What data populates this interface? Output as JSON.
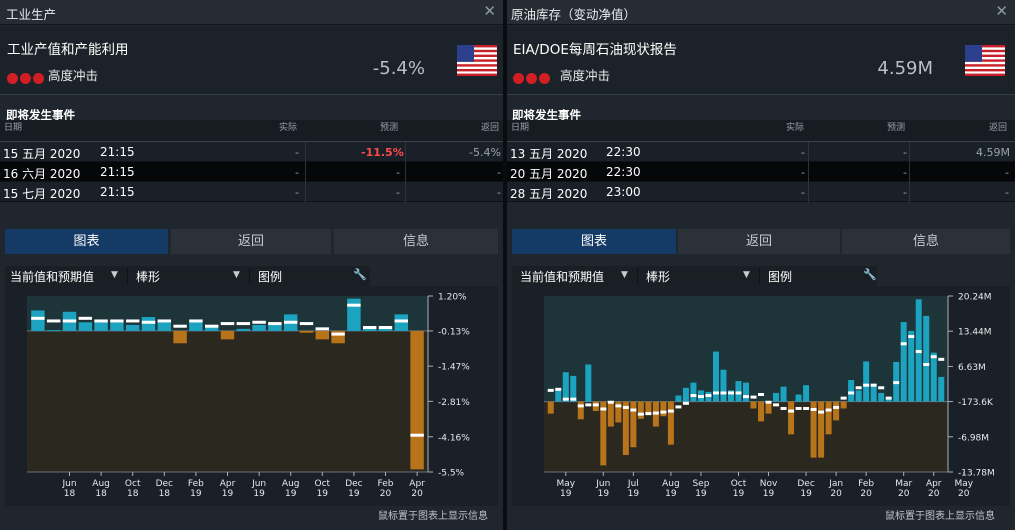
{
  "left": {
    "title": "工业生产",
    "event_name": "工业产值和产能利用",
    "impact_label": "高度冲击",
    "big_value": "-5.4%",
    "upcoming_title": "即将发生事件",
    "columns": {
      "date": "日期",
      "actual": "实际",
      "forecast": "预测",
      "previous": "返回"
    },
    "rows": [
      {
        "date": "15 五月 2020",
        "time": "21:15",
        "actual": "-",
        "forecast": "-11.5%",
        "previous": "-5.4%"
      },
      {
        "date": "16 六月 2020",
        "time": "21:15",
        "actual": "-",
        "forecast": "-",
        "previous": "-"
      },
      {
        "date": "15 七月 2020",
        "time": "21:15",
        "actual": "-",
        "forecast": "-",
        "previous": "-"
      }
    ],
    "tabs": [
      "图表",
      "返回",
      "信息"
    ],
    "controls": {
      "series": "当前值和预期值",
      "type": "棒形",
      "legend": "图例"
    },
    "footer": "鼠标置于图表上显示信息"
  },
  "right": {
    "title": "原油库存（变动净值）",
    "event_name": "EIA/DOE每周石油现状报告",
    "impact_label": "高度冲击",
    "big_value": "4.59M",
    "upcoming_title": "即将发生事件",
    "columns": {
      "date": "日期",
      "actual": "实际",
      "forecast": "预测",
      "previous": "返回"
    },
    "rows": [
      {
        "date": "13 五月 2020",
        "time": "22:30",
        "actual": "-",
        "forecast": "-",
        "previous": "4.59M"
      },
      {
        "date": "20 五月 2020",
        "time": "22:30",
        "actual": "-",
        "forecast": "-",
        "previous": "-"
      },
      {
        "date": "28 五月 2020",
        "time": "23:00",
        "actual": "-",
        "forecast": "-",
        "previous": "-"
      }
    ],
    "tabs": [
      "图表",
      "返回",
      "信息"
    ],
    "controls": {
      "series": "当前值和预期值",
      "type": "棒形",
      "legend": "图例"
    },
    "footer": "鼠标置于图表上显示信息"
  },
  "colors": {
    "positive_bar": "#1ba3c0",
    "negative_bar": "#b8741a",
    "forecast_marker": "#ffffff",
    "impact_dot": "#d11f24"
  },
  "chart_data": [
    {
      "type": "bar",
      "ylim": [
        -5.5,
        1.2
      ],
      "yticks": [
        "1.20%",
        "-0.13%",
        "-1.47%",
        "-2.81%",
        "-4.16%",
        "-5.5%"
      ],
      "ytick_values": [
        1.2,
        -0.13,
        -1.47,
        -2.81,
        -4.16,
        -5.5
      ],
      "zero": -0.13,
      "xtick_labels": [
        [
          "Jun",
          "18"
        ],
        [
          "Aug",
          "18"
        ],
        [
          "Oct",
          "18"
        ],
        [
          "Dec",
          "18"
        ],
        [
          "Feb",
          "19"
        ],
        [
          "Apr",
          "19"
        ],
        [
          "Jun",
          "19"
        ],
        [
          "Aug",
          "19"
        ],
        [
          "Oct",
          "19"
        ],
        [
          "Dec",
          "19"
        ],
        [
          "Feb",
          "20"
        ],
        [
          "Apr",
          "20"
        ]
      ],
      "xtick_index": [
        2,
        4,
        6,
        8,
        10,
        12,
        14,
        16,
        18,
        20,
        22,
        24
      ],
      "series": [
        {
          "values": [
            0.65,
            -0.1,
            0.6,
            0.2,
            0.2,
            0.2,
            0.1,
            0.4,
            0.2,
            -0.6,
            0.3,
            0.1,
            -0.45,
            -0.05,
            0.1,
            0.1,
            0.5,
            -0.2,
            -0.45,
            -0.6,
            1.1,
            0.0,
            0.0,
            0.5,
            -5.4
          ]
        },
        {
          "values": [
            0.35,
            0.25,
            0.25,
            0.35,
            0.25,
            0.25,
            0.25,
            0.2,
            0.25,
            0.05,
            0.25,
            0.05,
            0.15,
            0.15,
            0.2,
            0.15,
            0.2,
            0.15,
            -0.05,
            -0.25,
            0.85,
            0.0,
            0.0,
            0.25,
            -4.1
          ]
        }
      ]
    },
    {
      "type": "bar",
      "ylim": [
        -13.78,
        20.24
      ],
      "yticks": [
        "20.24M",
        "13.44M",
        "6.63M",
        "-173.6K",
        "-6.98M",
        "-13.78M"
      ],
      "ytick_values": [
        20.24,
        13.44,
        6.63,
        -0.17,
        -6.98,
        -13.78
      ],
      "zero": -0.17,
      "xtick_labels": [
        [
          "May",
          "19"
        ],
        [
          "Jun",
          "19"
        ],
        [
          "Jul",
          "19"
        ],
        [
          "Aug",
          "19"
        ],
        [
          "Sep",
          "19"
        ],
        [
          "Oct",
          "19"
        ],
        [
          "Nov",
          "19"
        ],
        [
          "Dec",
          "19"
        ],
        [
          "Jan",
          "20"
        ],
        [
          "Feb",
          "20"
        ],
        [
          "Mar",
          "20"
        ],
        [
          "Apr",
          "20"
        ],
        [
          "May",
          "20"
        ]
      ],
      "xtick_index": [
        2,
        7,
        11,
        16,
        20,
        25,
        29,
        34,
        38,
        42,
        47,
        51,
        55
      ],
      "series": [
        {
          "values": [
            -2.5,
            2.0,
            5.5,
            4.8,
            -3.6,
            7.0,
            -2.0,
            -12.5,
            -5.0,
            -4.2,
            -10.5,
            -9.0,
            -3.5,
            -2.5,
            -5.0,
            -3.0,
            -8.5,
            1.0,
            2.5,
            3.5,
            2.0,
            1.7,
            9.5,
            6.0,
            2.0,
            3.8,
            3.5,
            -1.5,
            -4.0,
            -2.5,
            1.5,
            2.7,
            -6.5,
            1.2,
            3.0,
            -11.0,
            -11.0,
            -6.5,
            -3.8,
            -1.5,
            4.0,
            2.0,
            7.6,
            3.3,
            1.5,
            0.5,
            7.5,
            15.2,
            13.5,
            19.6,
            16.4,
            9.3,
            4.6
          ]
        },
        {
          "values": [
            2.0,
            2.2,
            0.3,
            0.3,
            -1.0,
            -0.8,
            -0.8,
            -1.6,
            -0.3,
            -1.0,
            -1.3,
            -1.8,
            -2.6,
            -2.5,
            -2.4,
            -2.2,
            -2.0,
            -1.2,
            -0.5,
            1.0,
            0.8,
            1.0,
            1.5,
            1.5,
            1.5,
            1.5,
            0.8,
            0.7,
            1.2,
            -0.3,
            -0.8,
            -1.5,
            -2.0,
            -1.5,
            -1.5,
            -1.7,
            -2.2,
            -1.8,
            -1.3,
            0.5,
            1.5,
            2.5,
            3.0,
            3.0,
            2.5,
            0.5,
            3.5,
            11.0,
            12.4,
            9.5,
            7.0,
            8.5,
            8.0
          ]
        }
      ]
    }
  ]
}
